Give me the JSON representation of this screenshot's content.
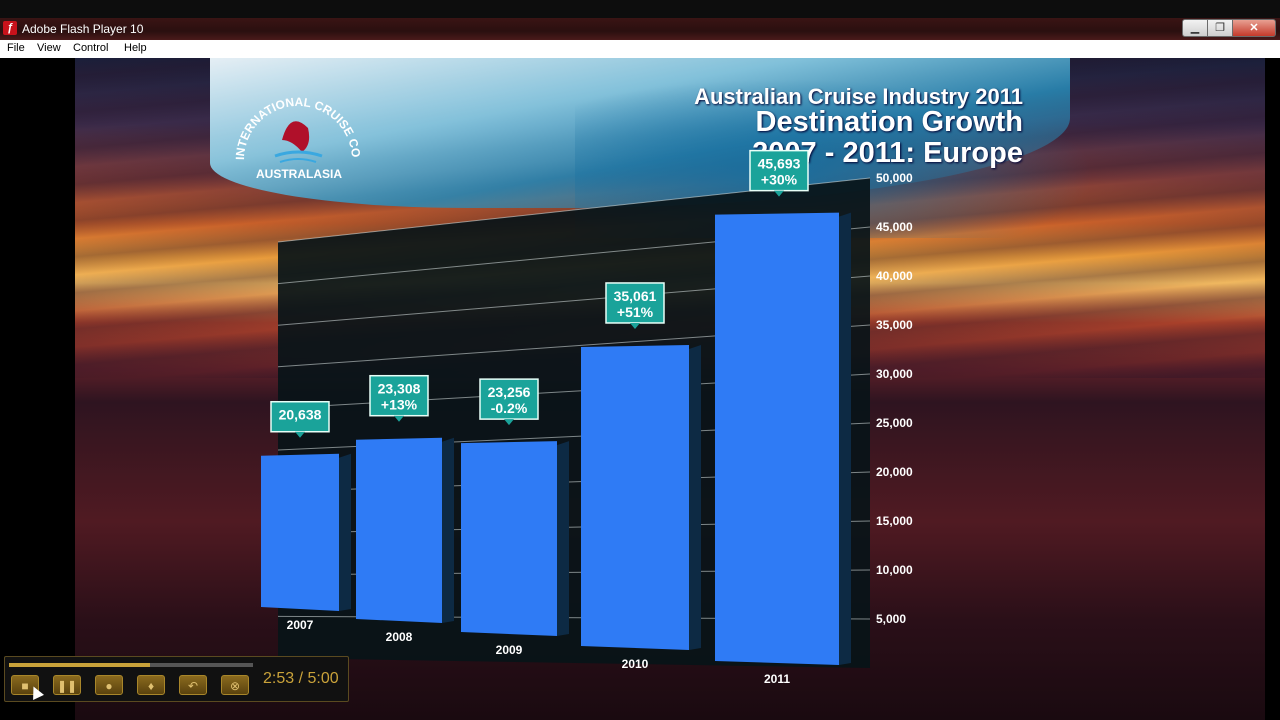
{
  "window": {
    "title": "Adobe Flash Player 10",
    "app_icon": "flash-icon",
    "controls": {
      "minimize": "minimize-icon",
      "maximize": "maximize-icon",
      "close": "close-icon"
    }
  },
  "menu": {
    "items": [
      {
        "label": "File"
      },
      {
        "label": "View"
      },
      {
        "label": "Control"
      },
      {
        "label": "Help"
      }
    ]
  },
  "slide": {
    "logo_arc_text": "INTERNATIONAL CRUISE COUNCIL",
    "logo_sub_text": "AUSTRALASIA",
    "title_line1": "Australian Cruise Industry 2011",
    "title_line2": "Destination Growth",
    "title_line3": "2007 - 2011: Europe"
  },
  "chart_data": {
    "type": "bar",
    "title": "",
    "categories": [
      "2007",
      "2008",
      "2009",
      "2010",
      "2011"
    ],
    "values": [
      20638,
      23308,
      23256,
      35061,
      45693
    ],
    "value_labels": [
      "20,638",
      "23,308",
      "23,256",
      "35,061",
      "45,693"
    ],
    "growth_labels": [
      "",
      "+13%",
      "-0.2%",
      "+51%",
      "+30%"
    ],
    "ylim": [
      0,
      50000
    ],
    "yticks": [
      5000,
      10000,
      15000,
      20000,
      25000,
      30000,
      35000,
      40000,
      45000,
      50000
    ],
    "ytick_labels": [
      "5,000",
      "10,000",
      "15,000",
      "20,000",
      "25,000",
      "30,000",
      "35,000",
      "40,000",
      "45,000",
      "50,000"
    ],
    "bar_color": "#2f7bf5",
    "label_box_color": "#1aa39a",
    "grid": true
  },
  "player": {
    "time": "2:53 / 5:00",
    "progress": 0.577,
    "buttons": [
      {
        "name": "stop-icon"
      },
      {
        "name": "pause-icon"
      },
      {
        "name": "camera-icon"
      },
      {
        "name": "microphone-icon"
      },
      {
        "name": "rewind-icon"
      },
      {
        "name": "close-circle-icon"
      }
    ]
  }
}
